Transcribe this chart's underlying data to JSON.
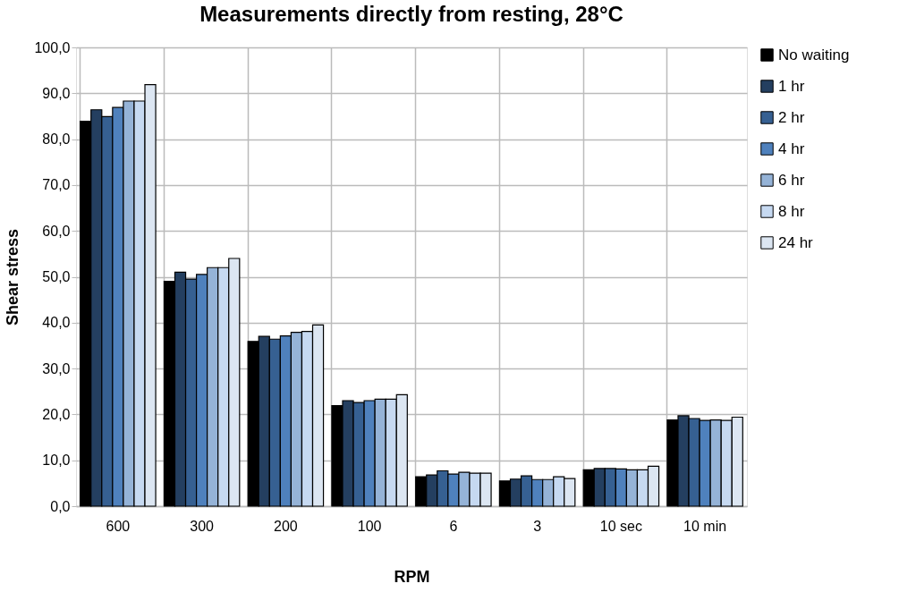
{
  "chart_data": {
    "type": "bar",
    "title": "Measurements directly from resting, 28°C",
    "xlabel": "RPM",
    "ylabel": "Shear stress",
    "categories": [
      "600",
      "300",
      "200",
      "100",
      "6",
      "3",
      "10 sec",
      "10 min"
    ],
    "series": [
      {
        "name": "No waiting",
        "color": "#000000",
        "values": [
          83.9,
          49.0,
          35.9,
          21.9,
          6.4,
          5.5,
          7.9,
          18.8
        ]
      },
      {
        "name": "1 hr",
        "color": "#243f60",
        "values": [
          86.4,
          51.0,
          37.0,
          23.0,
          6.8,
          5.9,
          8.2,
          19.7
        ]
      },
      {
        "name": "2 hr",
        "color": "#366092",
        "values": [
          84.9,
          49.5,
          36.4,
          22.6,
          7.7,
          6.6,
          8.2,
          19.1
        ]
      },
      {
        "name": "4 hr",
        "color": "#4f81bd",
        "values": [
          86.9,
          50.5,
          37.1,
          23.0,
          7.0,
          5.8,
          8.1,
          18.7
        ]
      },
      {
        "name": "6 hr",
        "color": "#95b3d7",
        "values": [
          88.3,
          52.0,
          37.9,
          23.3,
          7.4,
          5.8,
          7.9,
          18.8
        ]
      },
      {
        "name": "8 hr",
        "color": "#c6d9f1",
        "values": [
          88.3,
          52.0,
          38.1,
          23.3,
          7.2,
          6.4,
          7.9,
          18.7
        ]
      },
      {
        "name": "24 hr",
        "color": "#dce6f2",
        "values": [
          91.9,
          54.0,
          39.5,
          24.3,
          7.2,
          6.0,
          8.7,
          19.4
        ]
      }
    ],
    "ylim": [
      0,
      100
    ],
    "yticks": [
      {
        "value": 0,
        "label": "0,0"
      },
      {
        "value": 10,
        "label": "10,0"
      },
      {
        "value": 20,
        "label": "20,0"
      },
      {
        "value": 30,
        "label": "30,0"
      },
      {
        "value": 40,
        "label": "40,0"
      },
      {
        "value": 50,
        "label": "50,0"
      },
      {
        "value": 60,
        "label": "60,0"
      },
      {
        "value": 70,
        "label": "70,0"
      },
      {
        "value": 80,
        "label": "80,0"
      },
      {
        "value": 90,
        "label": "90,0"
      },
      {
        "value": 100,
        "label": "100,0"
      }
    ],
    "grid": true,
    "legend": "right"
  }
}
